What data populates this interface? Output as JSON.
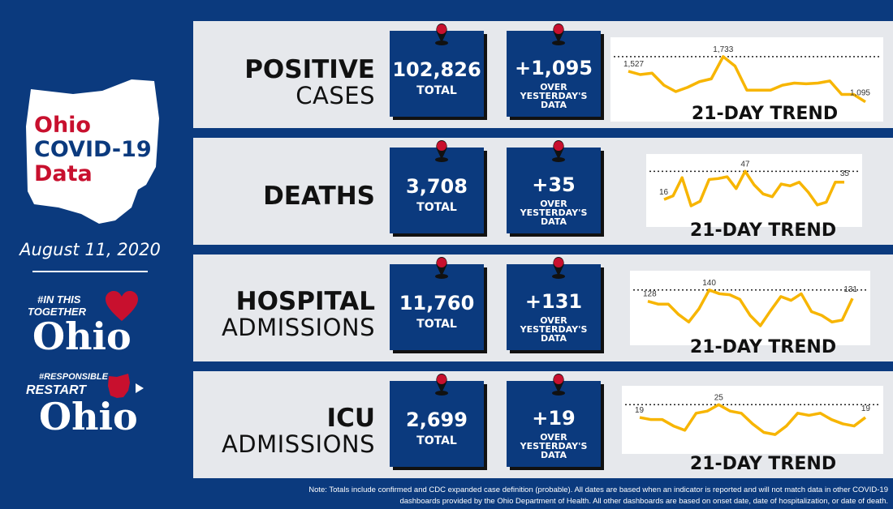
{
  "sidebar": {
    "title_line1": "Ohio",
    "title_line2": "COVID-19",
    "title_line3": "Data",
    "date": "August 11, 2020",
    "logo1_small1": "#IN THIS",
    "logo1_small2": "TOGETHER",
    "logo1_big": "Ohio",
    "logo2_small1": "#RESPONSIBLE",
    "logo2_small2": "RESTART",
    "logo2_big": "Ohio"
  },
  "colors": {
    "navy": "#0b3a7e",
    "line": "#f7b500",
    "red": "#c8102e",
    "panel": "#e6e8ec"
  },
  "rows": [
    {
      "label_a": "POSITIVE",
      "label_b": "CASES",
      "total": "102,826",
      "total_label": "TOTAL",
      "change": "+1,095",
      "change_label1": "OVER",
      "change_label2": "YESTERDAY'S",
      "change_label3": "DATA",
      "trend_label": "21-DAY TREND"
    },
    {
      "label_a": "DEATHS",
      "label_b": "",
      "total": "3,708",
      "total_label": "TOTAL",
      "change": "+35",
      "change_label1": "OVER",
      "change_label2": "YESTERDAY'S",
      "change_label3": "DATA",
      "trend_label": "21-DAY TREND"
    },
    {
      "label_a": "HOSPITAL",
      "label_b": "ADMISSIONS",
      "total": "11,760",
      "total_label": "TOTAL",
      "change": "+131",
      "change_label1": "OVER",
      "change_label2": "YESTERDAY'S",
      "change_label3": "DATA",
      "trend_label": "21-DAY TREND"
    },
    {
      "label_a": "ICU",
      "label_b": "ADMISSIONS",
      "total": "2,699",
      "total_label": "TOTAL",
      "change": "+19",
      "change_label1": "OVER",
      "change_label2": "YESTERDAY'S",
      "change_label3": "DATA",
      "trend_label": "21-DAY TREND"
    }
  ],
  "chart_data": [
    {
      "type": "line",
      "title": "21-DAY TREND",
      "series": [
        {
          "values": [
            1527,
            1480,
            1500,
            1330,
            1240,
            1300,
            1380,
            1420,
            1733,
            1600,
            1260,
            1260,
            1260,
            1330,
            1360,
            1350,
            1360,
            1390,
            1200,
            1200,
            1095
          ]
        }
      ],
      "labels": {
        "start": "1,527",
        "max": "1,733",
        "end": "1,095"
      },
      "reference_line": 1733,
      "ylim": [
        1000,
        1800
      ]
    },
    {
      "type": "line",
      "title": "21-DAY TREND",
      "series": [
        {
          "values": [
            16,
            20,
            40,
            9,
            14,
            38,
            39,
            41,
            28,
            47,
            32,
            22,
            19,
            33,
            31,
            35,
            24,
            10,
            13,
            35,
            35
          ]
        }
      ],
      "labels": {
        "start": "16",
        "max": "47",
        "end": "35"
      },
      "reference_line": 47,
      "ylim": [
        0,
        50
      ]
    },
    {
      "type": "line",
      "title": "21-DAY TREND",
      "series": [
        {
          "values": [
            128,
            125,
            125,
            114,
            106,
            120,
            140,
            136,
            135,
            130,
            113,
            102,
            118,
            133,
            129,
            136,
            117,
            113,
            106,
            108,
            131
          ]
        }
      ],
      "labels": {
        "start": "128",
        "max": "140",
        "end": "131"
      },
      "reference_line": 140,
      "ylim": [
        95,
        145
      ]
    },
    {
      "type": "line",
      "title": "21-DAY TREND",
      "series": [
        {
          "values": [
            19,
            18,
            18,
            15,
            13,
            21,
            22,
            25,
            22,
            21,
            16,
            12,
            11,
            15,
            21,
            20,
            21,
            18,
            16,
            15,
            19
          ]
        }
      ],
      "labels": {
        "start": "19",
        "max": "25",
        "end": "19"
      },
      "reference_line": 25,
      "ylim": [
        8,
        27
      ]
    }
  ],
  "footer": {
    "note_line1": "Note: Totals include confirmed and CDC expanded case definition (probable). All dates are based when an indicator is reported and will not match data in other COVID-19",
    "note_line2": "dashboards provided by the Ohio Department of Health.  All other dashboards are based on onset date, date of hospitalization, or date of death."
  }
}
